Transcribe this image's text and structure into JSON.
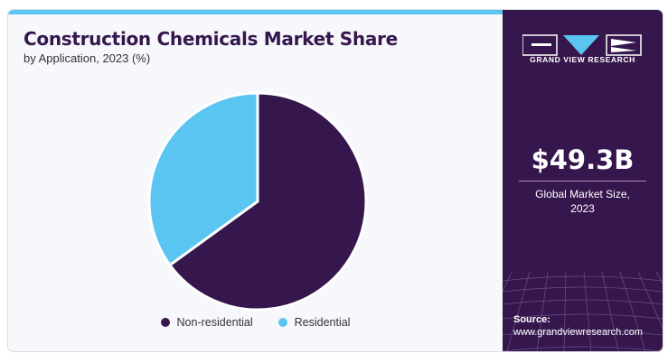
{
  "header": {
    "title": "Construction Chemicals Market Share",
    "subtitle": "by Application, 2023 (%)"
  },
  "chart_data": {
    "type": "pie",
    "title": "Construction Chemicals Market Share",
    "subtitle": "by Application, 2023 (%)",
    "labels": [
      "Non-residential",
      "Residential"
    ],
    "values": [
      65,
      35
    ],
    "colors": [
      "#36174d",
      "#5bc5f2"
    ],
    "legend": "bottom"
  },
  "sidebar": {
    "brand": "GRAND VIEW RESEARCH",
    "market_value": "$49.3B",
    "market_label_line1": "Global Market Size,",
    "market_label_line2": "2023",
    "source_label": "Source:",
    "source_url": "www.grandviewresearch.com"
  }
}
